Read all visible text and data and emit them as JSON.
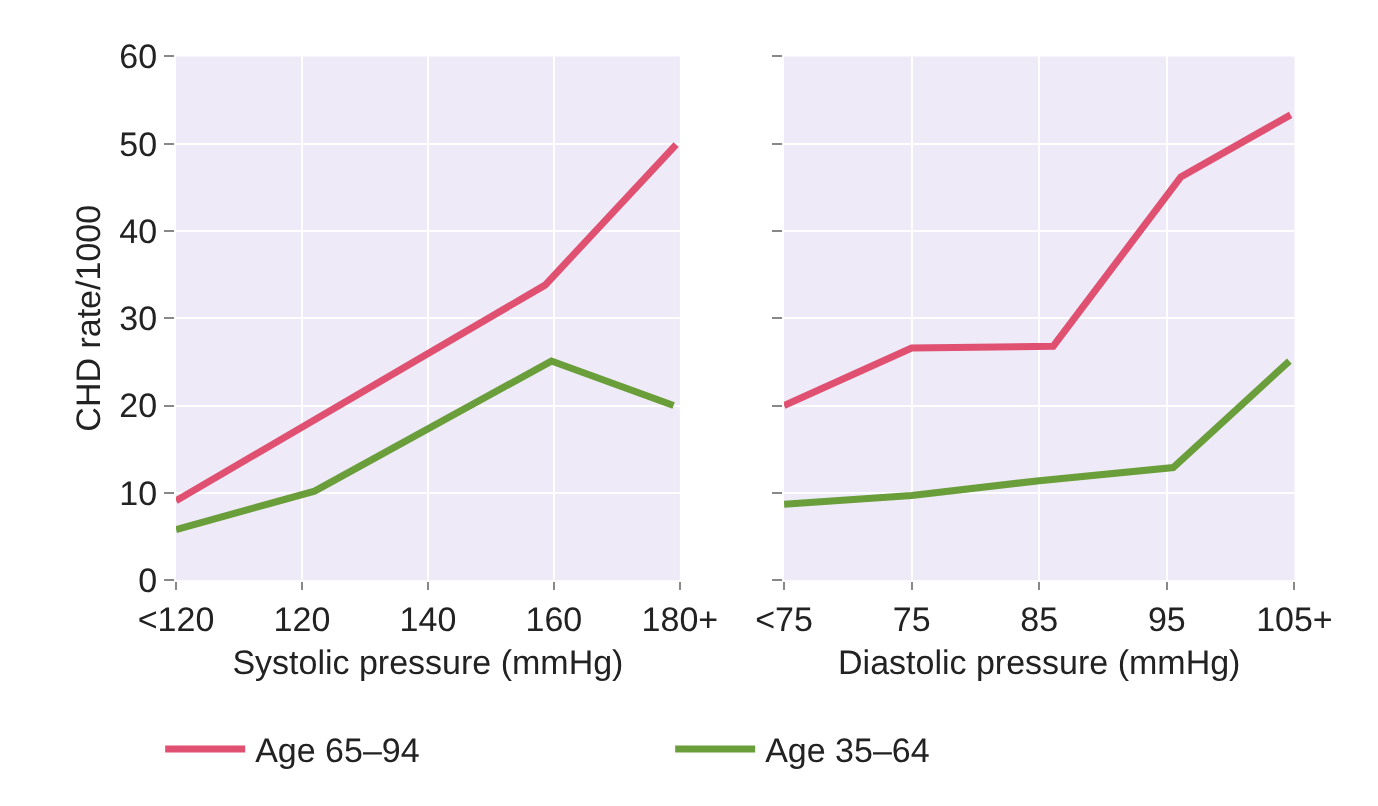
{
  "chart_data": [
    {
      "type": "line",
      "xlabel": "Systolic pressure (mmHg)",
      "ylabel": "CHD rate/1000",
      "xlim": [
        100,
        180
      ],
      "ylim": [
        0,
        60
      ],
      "xticks": [
        {
          "value": 100,
          "label": "<120"
        },
        120,
        140,
        160,
        {
          "value": 180,
          "label": "180+"
        }
      ],
      "yticks": [
        0,
        10,
        20,
        30,
        40,
        50,
        60
      ],
      "grid": true,
      "legend": "bottom",
      "series": [
        {
          "name": "Age 65–94",
          "color": "#e05070",
          "x": [
            100,
            158.6,
            179.4
          ],
          "values": [
            9.1,
            33.8,
            49.9
          ]
        },
        {
          "name": "Age 35–64",
          "color": "#6a9e3a",
          "x": [
            100,
            122,
            159.6,
            179
          ],
          "values": [
            5.8,
            10.2,
            25.1,
            20
          ]
        }
      ]
    },
    {
      "type": "line",
      "xlabel": "Diastolic pressure (mmHg)",
      "xlim": [
        65,
        105
      ],
      "ylim": [
        0,
        60
      ],
      "tick_labels": "x",
      "xticks": [
        {
          "value": 65,
          "label": "<75"
        },
        75,
        85,
        95,
        {
          "value": 105,
          "label": "105+"
        }
      ],
      "yticks": [
        0,
        10,
        20,
        30,
        40,
        50,
        60
      ],
      "grid": true,
      "series": [
        {
          "color": "#e05070",
          "x": [
            65,
            75,
            86.1,
            96.1,
            104.7
          ],
          "values": [
            20,
            26.6,
            26.8,
            46.2,
            53.3
          ]
        },
        {
          "color": "#6a9e3a",
          "x": [
            65,
            75,
            85,
            95.5,
            104.6
          ],
          "values": [
            8.7,
            9.7,
            11.4,
            12.9,
            25.1
          ]
        }
      ]
    }
  ]
}
